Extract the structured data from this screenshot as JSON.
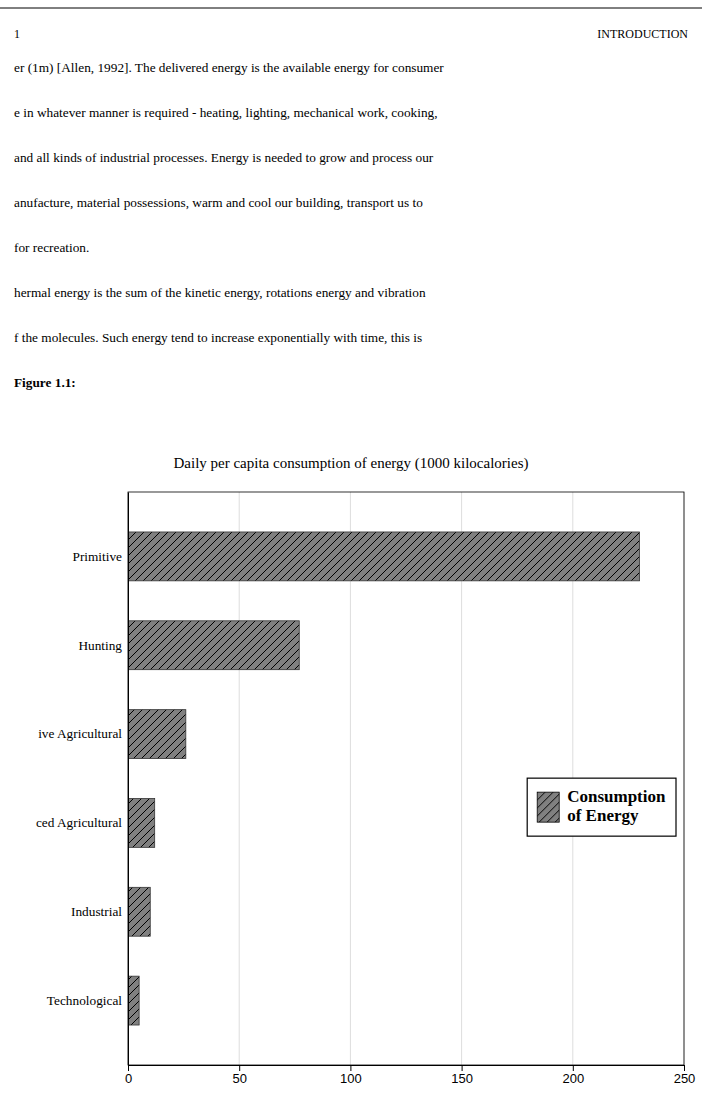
{
  "chart_data": {
    "type": "bar",
    "orientation": "horizontal",
    "title": "Daily per capita consumption of energy (1000 kilocalories)",
    "annotations": [
      "1",
      "INTRODUCTION",
      "er (1m) [Allen, 1992]. The delivered energy is the available energy for consumer",
      "e in whatever manner is required - heating, lighting, mechanical work, cooking,",
      "and all kinds of industrial processes.  Energy is needed to grow and process our",
      "anufacture, material possessions, warm and cool our building, transport us to",
      "for recreation.",
      "hermal energy is the sum of the kinetic energy, rotations energy and vibration",
      "f the molecules. Such energy tend to increase exponentially with time, this is",
      "Figure 1.1:"
    ],
    "categories": [
      "Primitive",
      "Hunting",
      "ive Agricultural",
      "ced Agricultural",
      "Industrial",
      "Technological"
    ],
    "series": [
      {
        "name": "Consumption\nof Energy",
        "color": "#808080",
        "values": [
          230,
          77,
          26,
          12,
          10,
          5
        ]
      }
    ],
    "xlim": [
      0,
      250
    ],
    "xticks": [
      0,
      50,
      100,
      150,
      200,
      250
    ],
    "grid": true,
    "legend": "right"
  }
}
